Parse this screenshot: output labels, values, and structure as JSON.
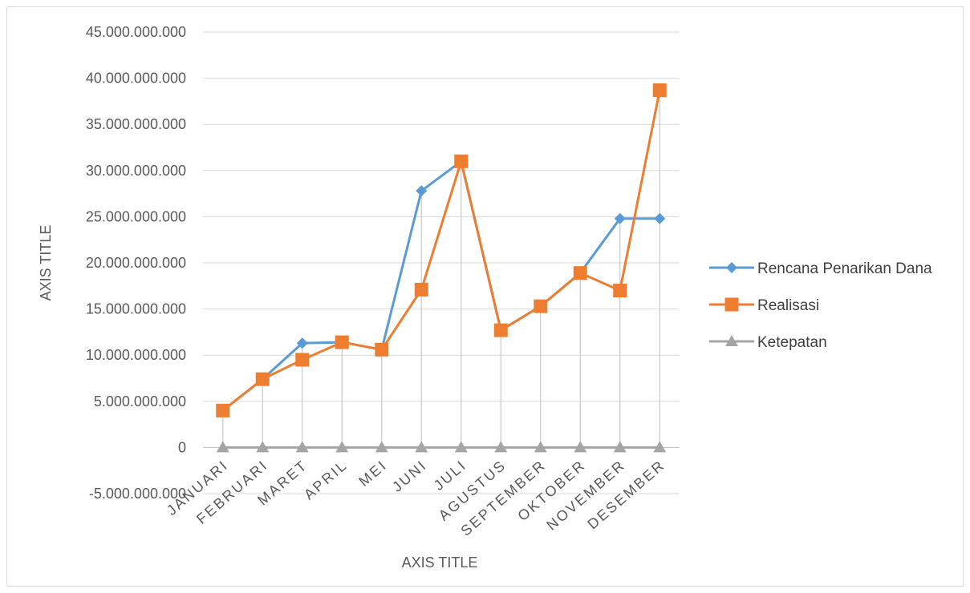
{
  "chart_data": {
    "type": "line",
    "categories": [
      "JANUARI",
      "FEBRUARI",
      "MARET",
      "APRIL",
      "MEI",
      "JUNI",
      "JULI",
      "AGUSTUS",
      "SEPTEMBER",
      "OKTOBER",
      "NOVEMBER",
      "DESEMBER"
    ],
    "series": [
      {
        "name": "Rencana Penarikan Dana",
        "values": [
          4000000000,
          7400000000,
          11300000000,
          11400000000,
          10600000000,
          27800000000,
          31000000000,
          12700000000,
          15300000000,
          18900000000,
          24800000000,
          24800000000
        ],
        "color": "#5B9BD5",
        "marker": "diamond"
      },
      {
        "name": "Realisasi",
        "values": [
          4000000000,
          7400000000,
          9500000000,
          11400000000,
          10600000000,
          17100000000,
          31000000000,
          12700000000,
          15300000000,
          18900000000,
          17000000000,
          38700000000
        ],
        "color": "#ED7D31",
        "marker": "square"
      },
      {
        "name": "Ketepatan",
        "values": [
          0,
          0,
          0,
          0,
          0,
          0,
          0,
          0,
          0,
          0,
          0,
          0
        ],
        "color": "#A5A5A5",
        "marker": "triangle"
      }
    ],
    "yticks": [
      "45.000.000.000",
      "40.000.000.000",
      "35.000.000.000",
      "30.000.000.000",
      "25.000.000.000",
      "20.000.000.000",
      "15.000.000.000",
      "10.000.000.000",
      "5.000.000.000",
      "0",
      "-5.000.000.000"
    ],
    "ylim": [
      -5000000000,
      45000000000
    ],
    "ystep": 5000000000,
    "xlabel": "AXIS TITLE",
    "ylabel": "AXIS TITLE",
    "grid": true,
    "drop_lines": true,
    "legend_position": "right"
  }
}
